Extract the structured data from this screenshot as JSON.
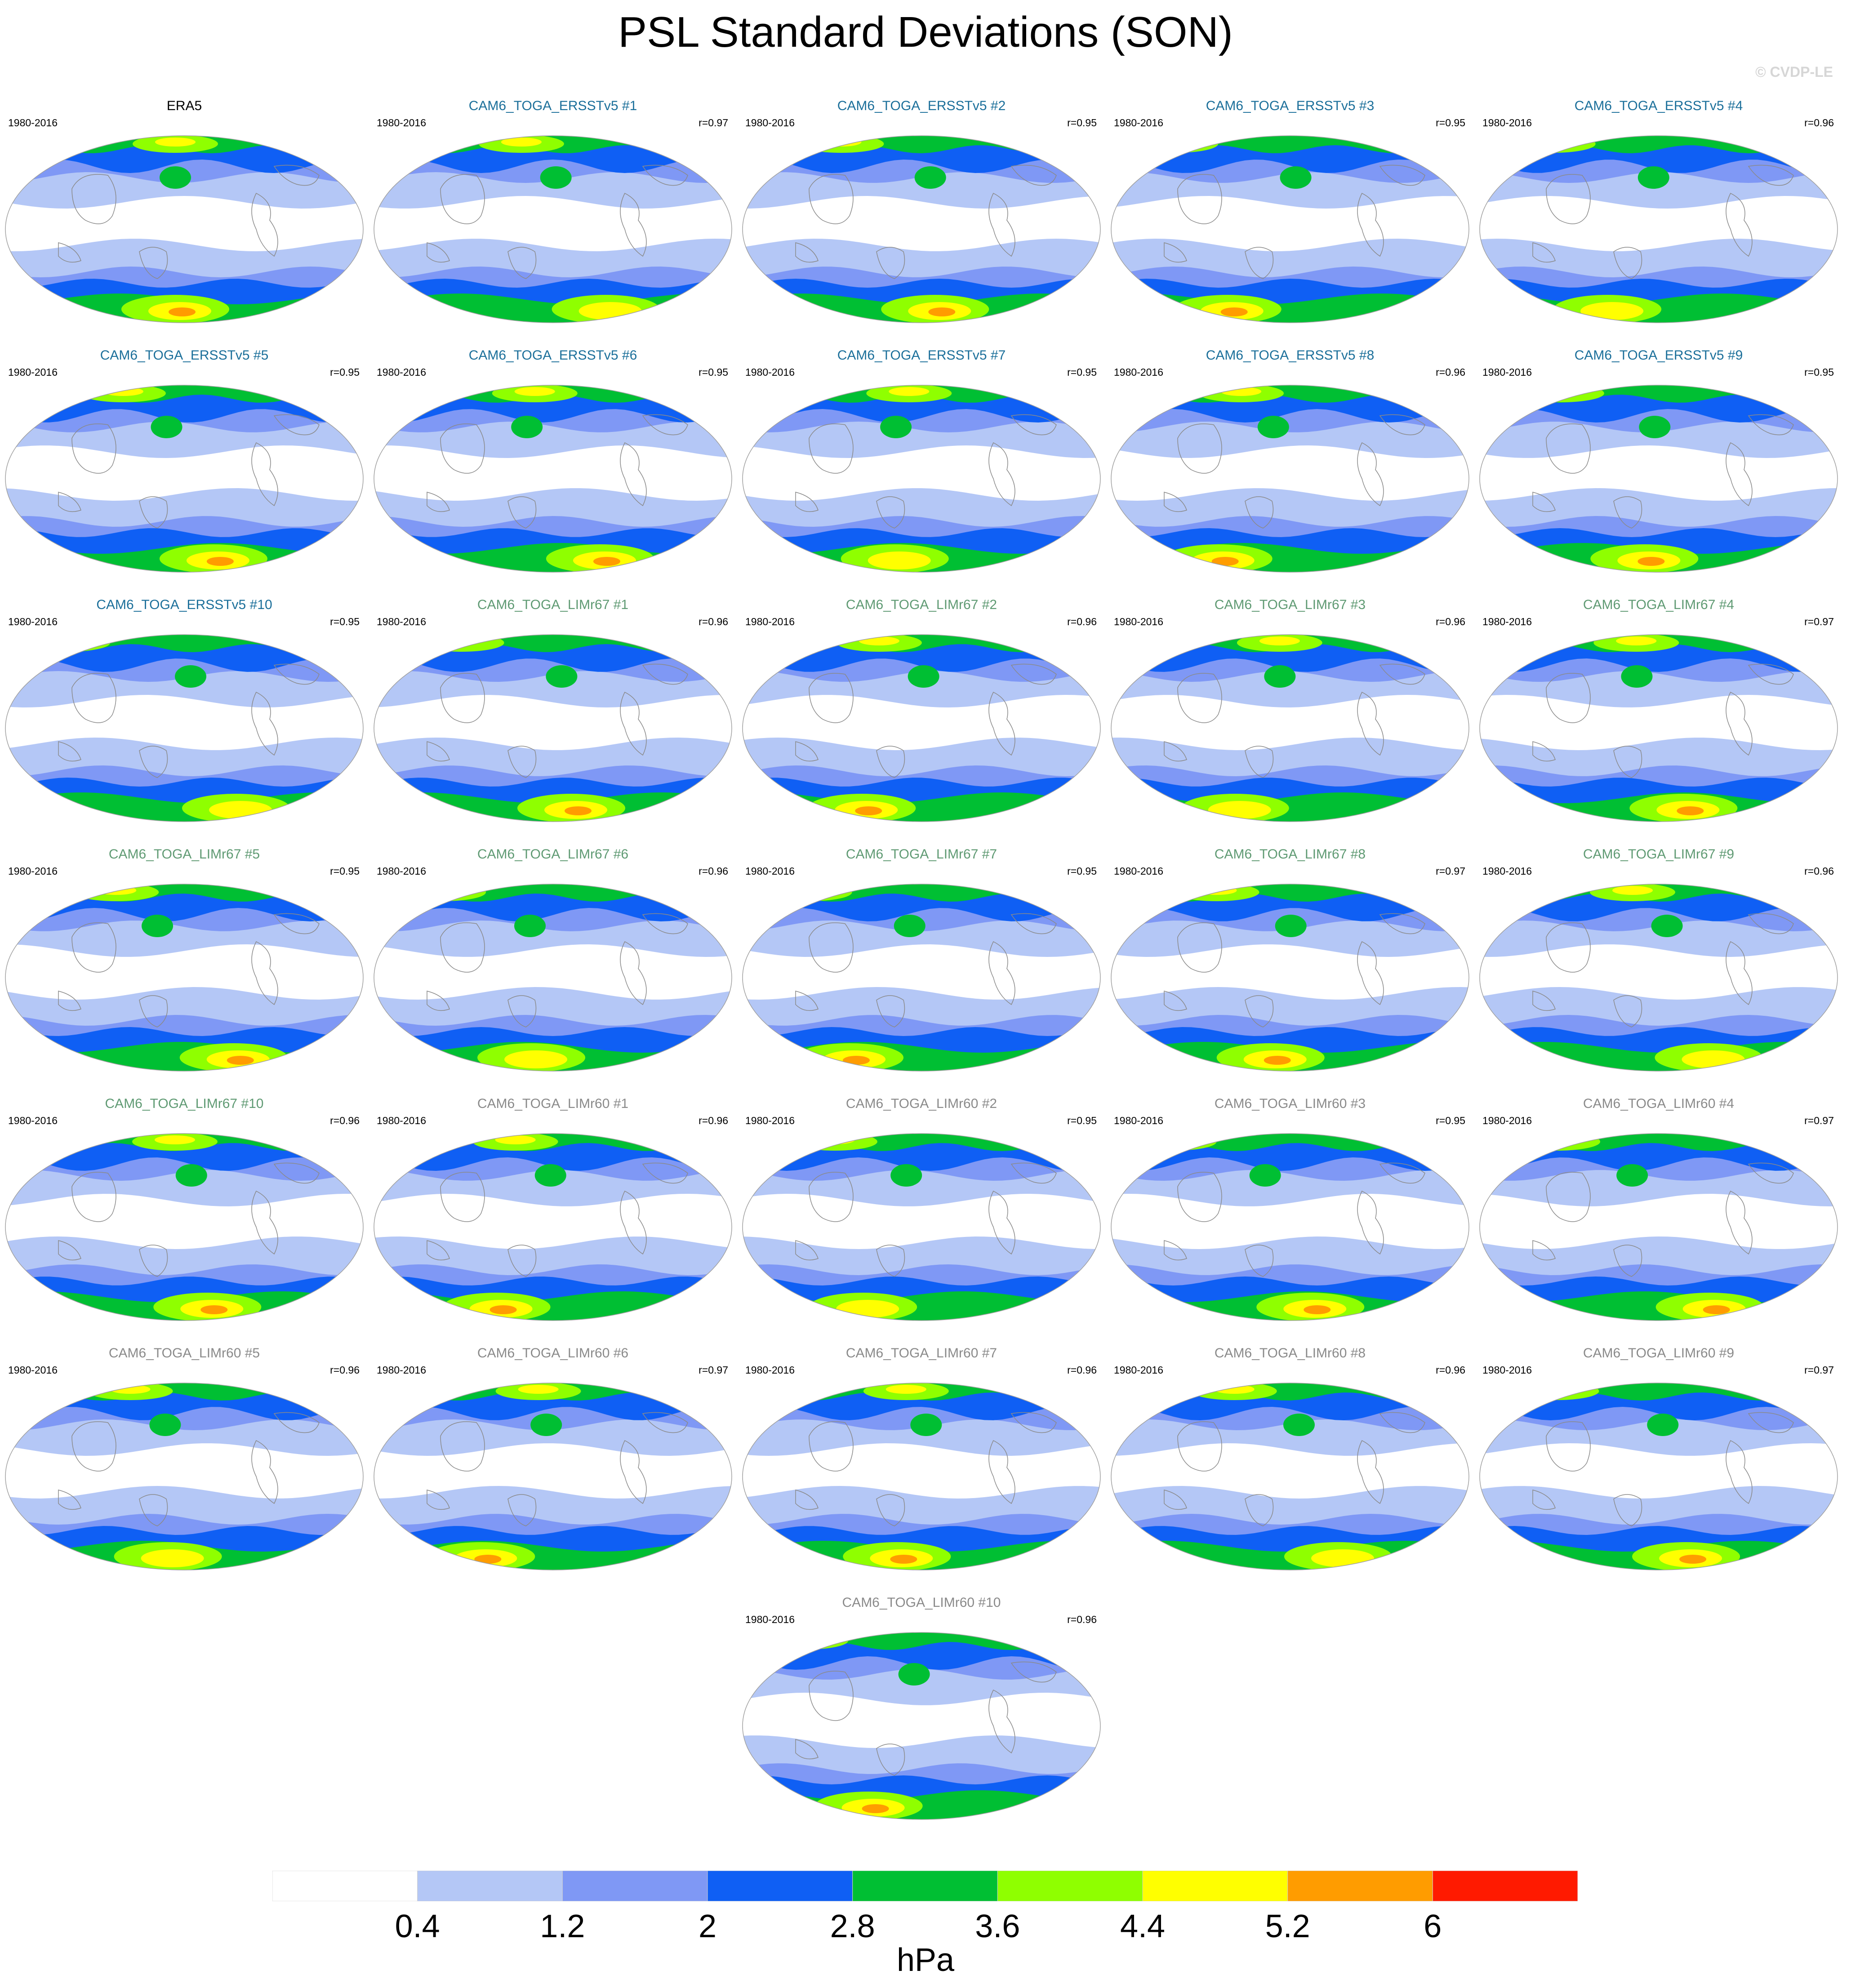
{
  "title": "PSL Standard Deviations (SON)",
  "credit": "© CVDP-LE",
  "unit": "hPa",
  "colorbar": {
    "levels": [
      "0.4",
      "1.2",
      "2",
      "2.8",
      "3.6",
      "4.4",
      "5.2",
      "6"
    ],
    "colors": [
      "#ffffff",
      "#b4c7f6",
      "#7f98f5",
      "#0f5ff4",
      "#00bf33",
      "#8fff00",
      "#ffff00",
      "#ff9c00",
      "#ff1a00"
    ]
  },
  "series_colors": {
    "obs": "#000000",
    "ERSSTv5": "#1b6f9a",
    "LIMr67": "#5f9a73",
    "LIMr60": "#8a8a8a"
  },
  "panels": [
    {
      "title": "ERA5",
      "years": "1980-2016",
      "r": "",
      "group": "obs"
    },
    {
      "title": "CAM6_TOGA_ERSSTv5 #1",
      "years": "1980-2016",
      "r": "r=0.97",
      "group": "ERSSTv5"
    },
    {
      "title": "CAM6_TOGA_ERSSTv5 #2",
      "years": "1980-2016",
      "r": "r=0.95",
      "group": "ERSSTv5"
    },
    {
      "title": "CAM6_TOGA_ERSSTv5 #3",
      "years": "1980-2016",
      "r": "r=0.95",
      "group": "ERSSTv5"
    },
    {
      "title": "CAM6_TOGA_ERSSTv5 #4",
      "years": "1980-2016",
      "r": "r=0.96",
      "group": "ERSSTv5"
    },
    {
      "title": "CAM6_TOGA_ERSSTv5 #5",
      "years": "1980-2016",
      "r": "r=0.95",
      "group": "ERSSTv5"
    },
    {
      "title": "CAM6_TOGA_ERSSTv5 #6",
      "years": "1980-2016",
      "r": "r=0.95",
      "group": "ERSSTv5"
    },
    {
      "title": "CAM6_TOGA_ERSSTv5 #7",
      "years": "1980-2016",
      "r": "r=0.95",
      "group": "ERSSTv5"
    },
    {
      "title": "CAM6_TOGA_ERSSTv5 #8",
      "years": "1980-2016",
      "r": "r=0.96",
      "group": "ERSSTv5"
    },
    {
      "title": "CAM6_TOGA_ERSSTv5 #9",
      "years": "1980-2016",
      "r": "r=0.95",
      "group": "ERSSTv5"
    },
    {
      "title": "CAM6_TOGA_ERSSTv5 #10",
      "years": "1980-2016",
      "r": "r=0.95",
      "group": "ERSSTv5"
    },
    {
      "title": "CAM6_TOGA_LIMr67 #1",
      "years": "1980-2016",
      "r": "r=0.96",
      "group": "LIMr67"
    },
    {
      "title": "CAM6_TOGA_LIMr67 #2",
      "years": "1980-2016",
      "r": "r=0.96",
      "group": "LIMr67"
    },
    {
      "title": "CAM6_TOGA_LIMr67 #3",
      "years": "1980-2016",
      "r": "r=0.96",
      "group": "LIMr67"
    },
    {
      "title": "CAM6_TOGA_LIMr67 #4",
      "years": "1980-2016",
      "r": "r=0.97",
      "group": "LIMr67"
    },
    {
      "title": "CAM6_TOGA_LIMr67 #5",
      "years": "1980-2016",
      "r": "r=0.95",
      "group": "LIMr67"
    },
    {
      "title": "CAM6_TOGA_LIMr67 #6",
      "years": "1980-2016",
      "r": "r=0.96",
      "group": "LIMr67"
    },
    {
      "title": "CAM6_TOGA_LIMr67 #7",
      "years": "1980-2016",
      "r": "r=0.95",
      "group": "LIMr67"
    },
    {
      "title": "CAM6_TOGA_LIMr67 #8",
      "years": "1980-2016",
      "r": "r=0.97",
      "group": "LIMr67"
    },
    {
      "title": "CAM6_TOGA_LIMr67 #9",
      "years": "1980-2016",
      "r": "r=0.96",
      "group": "LIMr67"
    },
    {
      "title": "CAM6_TOGA_LIMr67 #10",
      "years": "1980-2016",
      "r": "r=0.96",
      "group": "LIMr67"
    },
    {
      "title": "CAM6_TOGA_LIMr60 #1",
      "years": "1980-2016",
      "r": "r=0.96",
      "group": "LIMr60"
    },
    {
      "title": "CAM6_TOGA_LIMr60 #2",
      "years": "1980-2016",
      "r": "r=0.95",
      "group": "LIMr60"
    },
    {
      "title": "CAM6_TOGA_LIMr60 #3",
      "years": "1980-2016",
      "r": "r=0.95",
      "group": "LIMr60"
    },
    {
      "title": "CAM6_TOGA_LIMr60 #4",
      "years": "1980-2016",
      "r": "r=0.97",
      "group": "LIMr60"
    },
    {
      "title": "CAM6_TOGA_LIMr60 #5",
      "years": "1980-2016",
      "r": "r=0.96",
      "group": "LIMr60"
    },
    {
      "title": "CAM6_TOGA_LIMr60 #6",
      "years": "1980-2016",
      "r": "r=0.97",
      "group": "LIMr60"
    },
    {
      "title": "CAM6_TOGA_LIMr60 #7",
      "years": "1980-2016",
      "r": "r=0.96",
      "group": "LIMr60"
    },
    {
      "title": "CAM6_TOGA_LIMr60 #8",
      "years": "1980-2016",
      "r": "r=0.96",
      "group": "LIMr60"
    },
    {
      "title": "CAM6_TOGA_LIMr60 #9",
      "years": "1980-2016",
      "r": "r=0.97",
      "group": "LIMr60"
    },
    {
      "title": "CAM6_TOGA_LIMr60 #10",
      "years": "1980-2016",
      "r": "r=0.96",
      "group": "LIMr60"
    }
  ]
}
